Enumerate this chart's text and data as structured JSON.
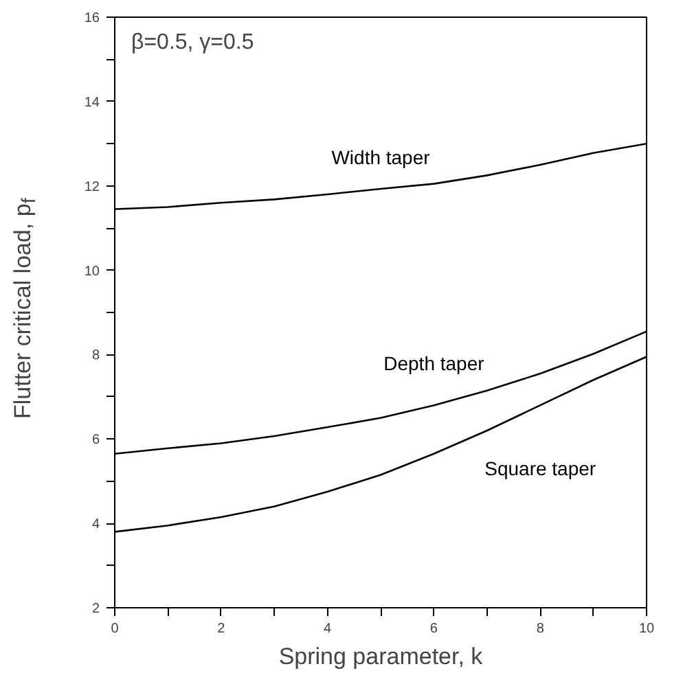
{
  "chart_data": {
    "type": "line",
    "xlabel": "Spring parameter, k",
    "ylabel": "Flutter critical load, p$_{f}$",
    "annotations": [
      "β=0.5, γ=0.5"
    ],
    "x": [
      0,
      1,
      2,
      3,
      4,
      5,
      6,
      7,
      8,
      9,
      10
    ],
    "series": [
      {
        "name": "Width taper",
        "color": "#000000",
        "values": [
          11.45,
          11.5,
          11.6,
          11.68,
          11.8,
          11.93,
          12.05,
          12.25,
          12.5,
          12.78,
          13.0
        ]
      },
      {
        "name": "Depth taper",
        "color": "#000000",
        "values": [
          5.65,
          5.78,
          5.9,
          6.07,
          6.28,
          6.5,
          6.8,
          7.15,
          7.55,
          8.02,
          8.55
        ]
      },
      {
        "name": "Square taper",
        "color": "#000000",
        "values": [
          3.8,
          3.95,
          4.15,
          4.4,
          4.75,
          5.15,
          5.65,
          6.2,
          6.8,
          7.4,
          7.95
        ]
      }
    ],
    "xlim": [
      0,
      10
    ],
    "ylim": [
      2,
      16
    ],
    "xticks": [
      0,
      {
        "value": 1,
        "label": null
      },
      2,
      {
        "value": 3,
        "label": null
      },
      4,
      {
        "value": 5,
        "label": null
      },
      6,
      {
        "value": 7,
        "label": null
      },
      8,
      {
        "value": 9,
        "label": null
      },
      10
    ],
    "yticks": [
      2,
      {
        "value": 3,
        "label": null
      },
      4,
      {
        "value": 5,
        "label": null
      },
      6,
      {
        "value": 7,
        "label": null
      },
      8,
      {
        "value": 9,
        "label": null
      },
      10,
      {
        "value": 11,
        "label": null
      },
      12,
      {
        "value": 13,
        "label": null
      },
      14,
      {
        "value": 15,
        "label": null
      },
      16
    ],
    "grid": false,
    "legend": false,
    "marker": "none",
    "line_style": "solid"
  }
}
